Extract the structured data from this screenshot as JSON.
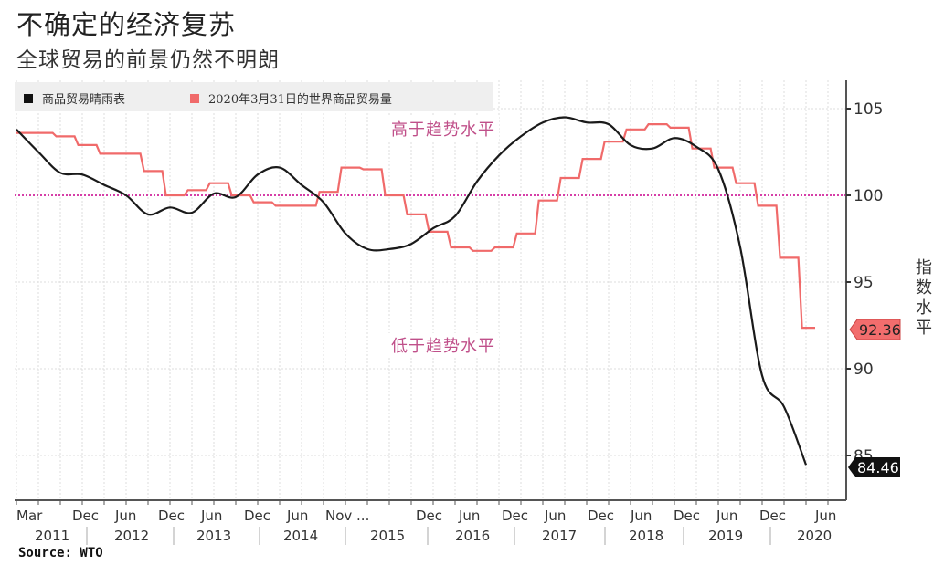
{
  "header": {
    "title": "不确定的经济复苏",
    "subtitle": "全球贸易的前景仍然不明朗"
  },
  "legend": {
    "items": [
      {
        "label": "商品贸易晴雨表",
        "color": "#111111"
      },
      {
        "label": "2020年3月31日的世界商品贸易量",
        "color": "#f06a6a"
      }
    ]
  },
  "annotations": {
    "above": "高于趋势水平",
    "below": "低于趋势水平"
  },
  "axis": {
    "ylabel": "指数水平",
    "yticks": [
      "105",
      "100",
      "95",
      "90",
      "85"
    ],
    "month_labels": [
      "Mar",
      "Dec",
      "Jun",
      "Dec",
      "Jun",
      "Dec",
      "Jun",
      "Nov ...",
      "Dec",
      "Jun",
      "Dec",
      "Jun",
      "Dec",
      "Jun",
      "Dec",
      "Jun",
      "Dec",
      "Jun"
    ],
    "year_labels": [
      "2011",
      "2012",
      "2013",
      "2014",
      "2015",
      "2016",
      "2017",
      "2018",
      "2019",
      "2020"
    ]
  },
  "badges": {
    "trade_volume_last": "92.36",
    "barometer_last": "84.46"
  },
  "footer": {
    "source": "Source: WTO"
  },
  "colors": {
    "barometer": "#111111",
    "trade_volume": "#f06a6a",
    "trend_line": "#d63fa8",
    "annotation": "#c0508a"
  },
  "chart_data": {
    "type": "line",
    "title": "不确定的经济复苏",
    "subtitle": "全球贸易的前景仍然不明朗",
    "xlabel": "",
    "ylabel": "指数水平",
    "ylim": [
      84,
      106
    ],
    "yticks": [
      85,
      90,
      95,
      100,
      105
    ],
    "grid": true,
    "legend_position": "top-left",
    "reference_line": {
      "y": 100,
      "style": "dotted",
      "color": "#d63fa8"
    },
    "annotations": [
      {
        "text": "高于趋势水平",
        "position": "above 100"
      },
      {
        "text": "低于趋势水平",
        "position": "below 100"
      }
    ],
    "x": [
      "2011-03",
      "2011-06",
      "2011-09",
      "2011-12",
      "2012-03",
      "2012-06",
      "2012-09",
      "2012-12",
      "2013-03",
      "2013-06",
      "2013-09",
      "2013-12",
      "2014-03",
      "2014-06",
      "2014-09",
      "2014-12",
      "2015-03",
      "2015-06",
      "2015-09",
      "2015-12",
      "2016-03",
      "2016-06",
      "2016-09",
      "2016-12",
      "2017-03",
      "2017-06",
      "2017-09",
      "2017-12",
      "2018-03",
      "2018-06",
      "2018-09",
      "2018-12",
      "2019-03",
      "2019-06",
      "2019-09",
      "2019-12",
      "2020-03",
      "2020-06"
    ],
    "series": [
      {
        "name": "商品贸易晴雨表",
        "color": "#111111",
        "values": [
          103.8,
          102.5,
          101.3,
          101.2,
          100.6,
          100.0,
          98.9,
          99.3,
          99.0,
          100.1,
          99.9,
          101.2,
          101.6,
          100.6,
          99.6,
          97.8,
          96.9,
          96.9,
          97.2,
          98.1,
          98.8,
          100.8,
          102.3,
          103.4,
          104.2,
          104.5,
          104.2,
          104.1,
          102.9,
          102.7,
          103.3,
          102.8,
          101.5,
          97.0,
          89.6,
          87.8,
          84.46,
          null
        ]
      },
      {
        "name": "2020年3月31日的世界商品贸易量",
        "color": "#f06a6a",
        "values": [
          103.6,
          103.6,
          103.4,
          102.9,
          102.4,
          102.4,
          101.4,
          100.0,
          100.3,
          100.7,
          100.0,
          99.6,
          99.4,
          99.4,
          100.2,
          101.6,
          101.5,
          100.0,
          98.9,
          97.9,
          97.0,
          96.8,
          97.0,
          97.8,
          99.7,
          101.0,
          102.1,
          103.1,
          103.8,
          104.1,
          103.9,
          102.7,
          101.6,
          100.7,
          99.4,
          96.4,
          92.36,
          null
        ]
      }
    ],
    "last_values": {
      "商品贸易晴雨表": 84.46,
      "2020年3月31日的世界商品贸易量": 92.36
    },
    "source": "WTO"
  }
}
